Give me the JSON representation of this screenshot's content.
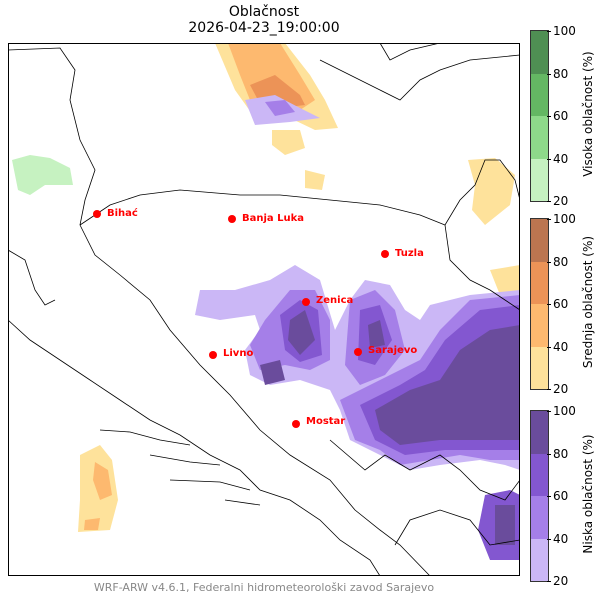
{
  "title": {
    "line1": "Oblačnost",
    "line2": "2026-04-23_19:00:00"
  },
  "footer": "WRF-ARW v4.6.1, Federalni hidrometeorološki zavod Sarajevo",
  "cities": [
    "Bihać",
    "Banja Luka",
    "Tuzla",
    "Zenica",
    "Livno",
    "Sarajevo",
    "Mostar"
  ],
  "colorbars": [
    {
      "label": "Visoka oblačnost (%)",
      "ticks": [
        "20",
        "40",
        "60",
        "80",
        "100"
      ],
      "colors": [
        "#c6f2c1",
        "#8ed98a",
        "#64b763",
        "#4f8f53"
      ]
    },
    {
      "label": "Srednja oblačnost (%)",
      "ticks": [
        "20",
        "40",
        "60",
        "80",
        "100"
      ],
      "colors": [
        "#fee29b",
        "#fdb96f",
        "#ec9357",
        "#bb7550"
      ]
    },
    {
      "label": "Niska oblačnost (%)",
      "ticks": [
        "20",
        "40",
        "60",
        "80",
        "100"
      ],
      "colors": [
        "#cbb7f6",
        "#a57fe8",
        "#8357d0",
        "#6a4c9c"
      ]
    }
  ]
}
